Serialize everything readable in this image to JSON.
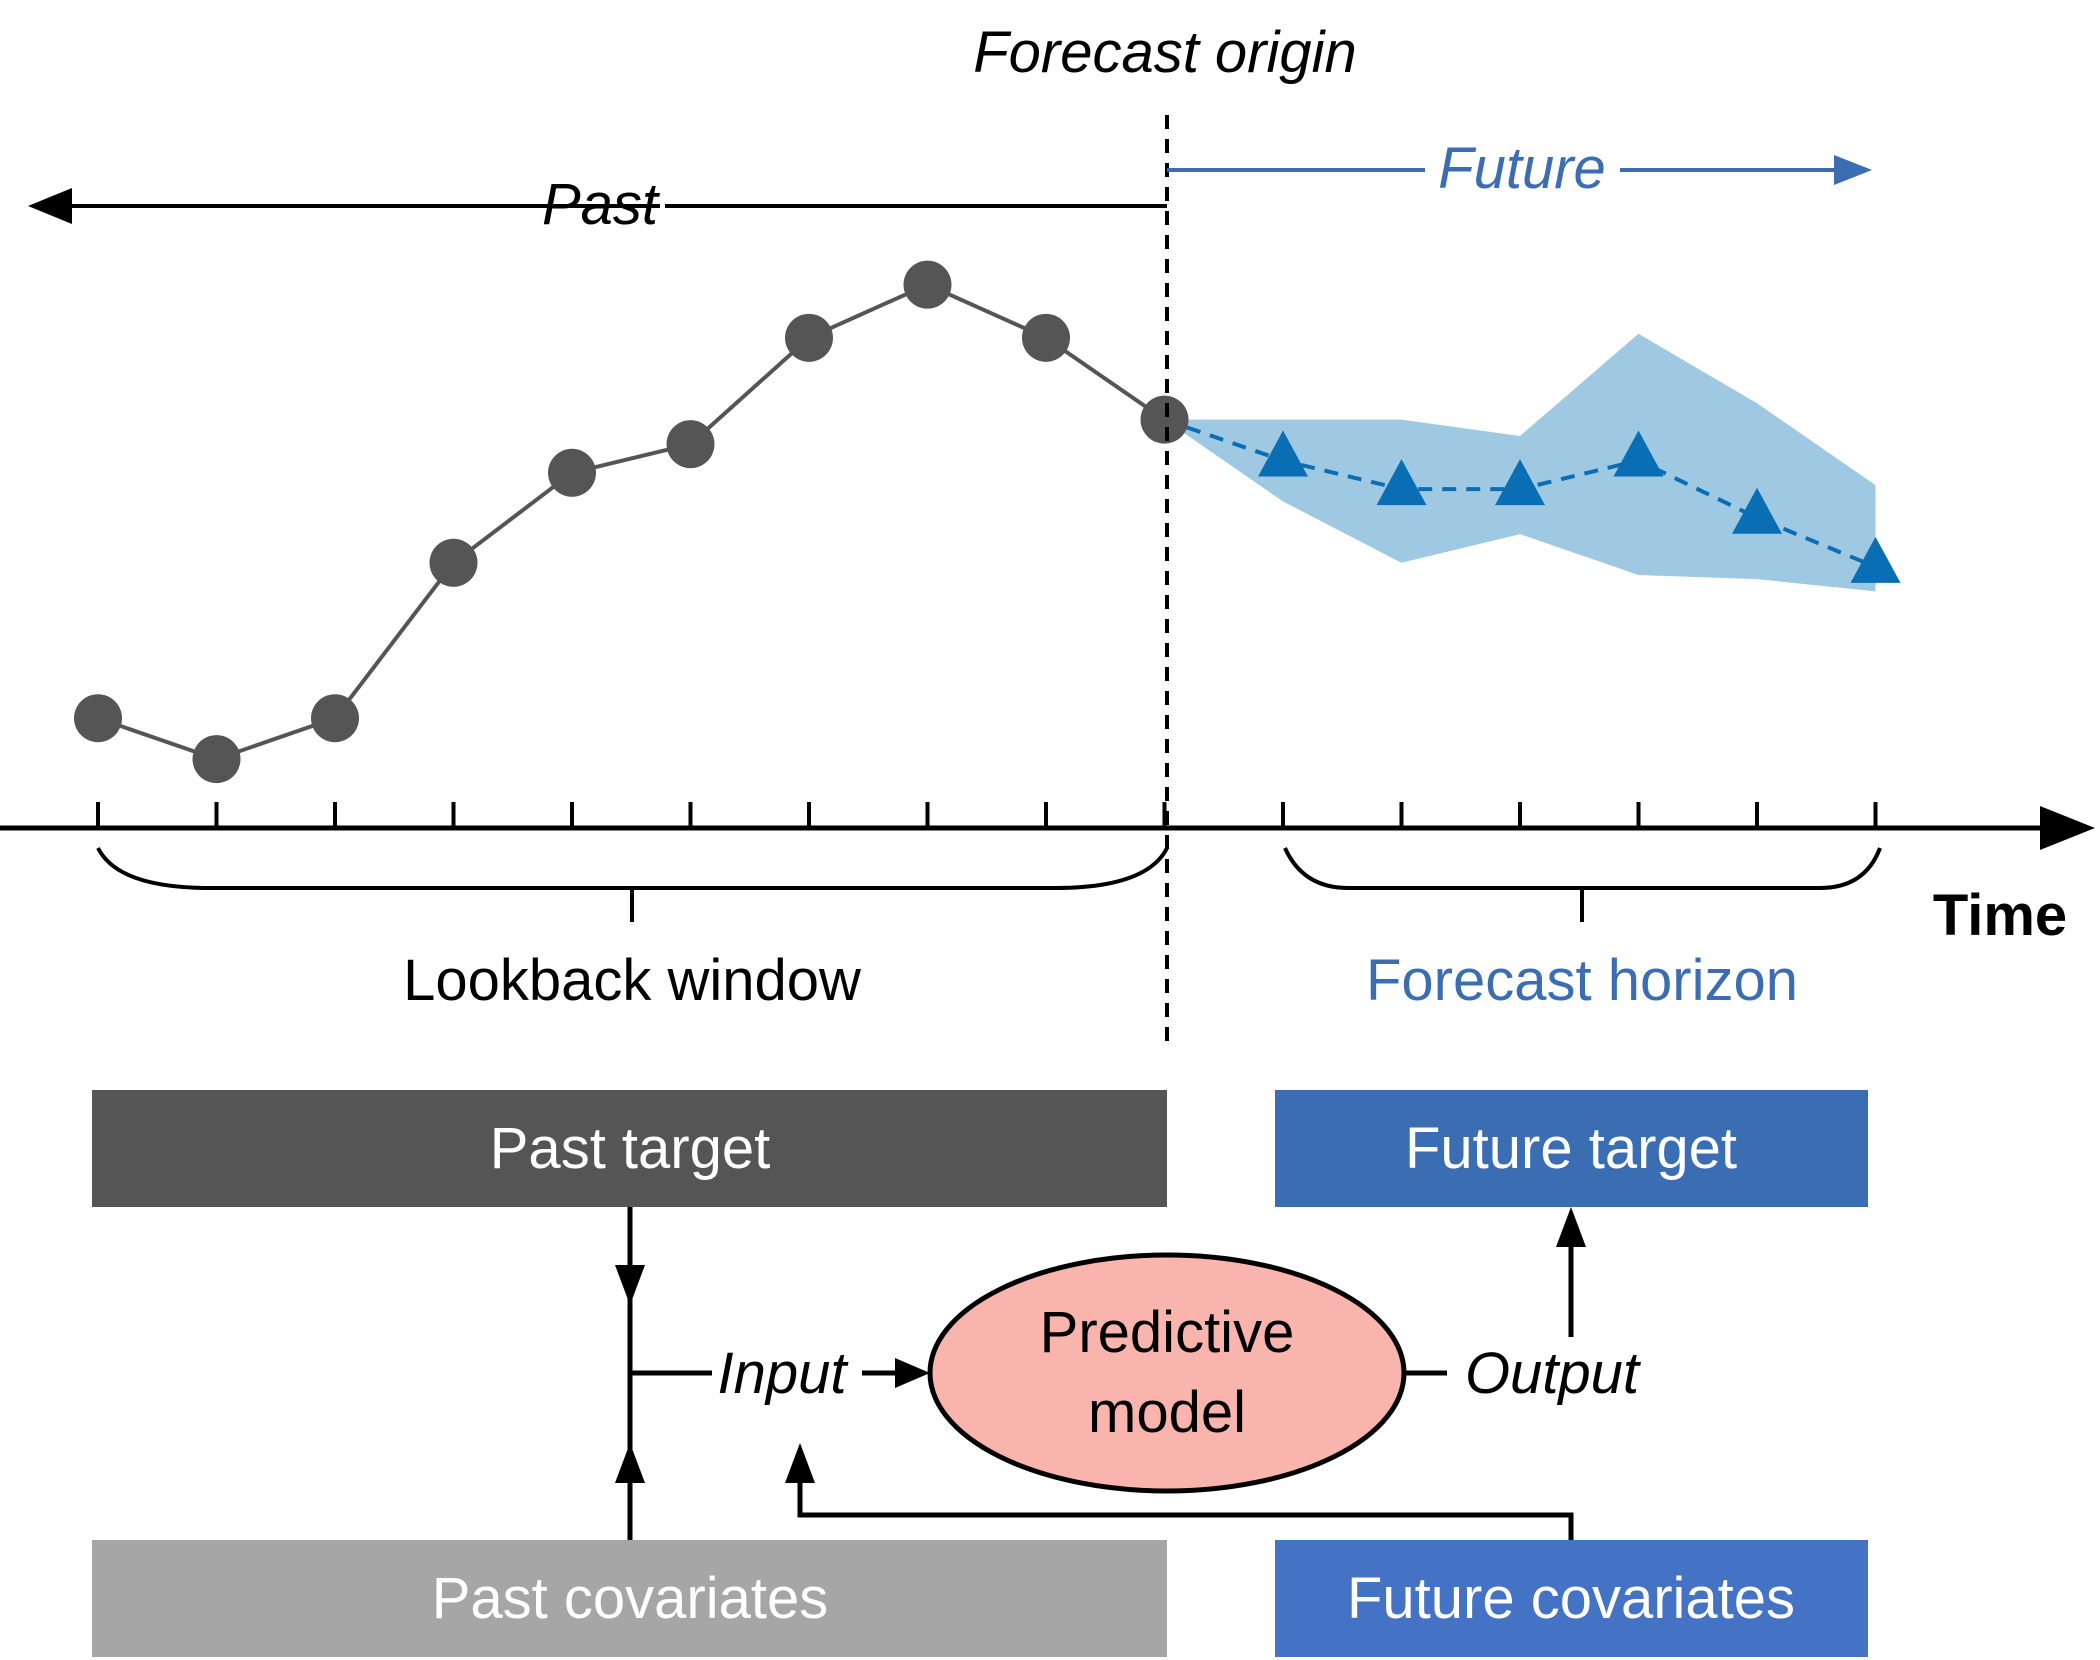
{
  "labels": {
    "forecast_origin": "Forecast origin",
    "past": "Past",
    "future": "Future",
    "time": "Time",
    "lookback_window": "Lookback window",
    "forecast_horizon": "Forecast horizon",
    "input": "Input",
    "output": "Output",
    "model_line1": "Predictive",
    "model_line2": "model"
  },
  "boxes": {
    "past_target": "Past target",
    "future_target": "Future target",
    "past_covariates": "Past covariates",
    "future_covariates": "Future covariates"
  },
  "series": {
    "past_values": [
      0.2,
      0.1,
      0.2,
      0.58,
      0.8,
      0.87,
      1.13,
      1.26,
      1.13,
      0.93
    ],
    "forecast_values": [
      0.83,
      0.76,
      0.76,
      0.83,
      0.69,
      0.57
    ],
    "band_upper": [
      0.93,
      0.93,
      0.89,
      1.14,
      0.97,
      0.77
    ],
    "band_lower": [
      0.73,
      0.58,
      0.65,
      0.55,
      0.54,
      0.51
    ]
  },
  "colors": {
    "past": "#555555",
    "forecast": "#0a6eb4",
    "band": "#9fc9e3",
    "future_text": "#3b6db3",
    "past_target_box": "#555555",
    "past_covariates_box": "#a6a6a6",
    "future_target_box": "#3b6db3",
    "future_covariates_box": "#4472c4",
    "model_fill": "#f9b4ad"
  }
}
